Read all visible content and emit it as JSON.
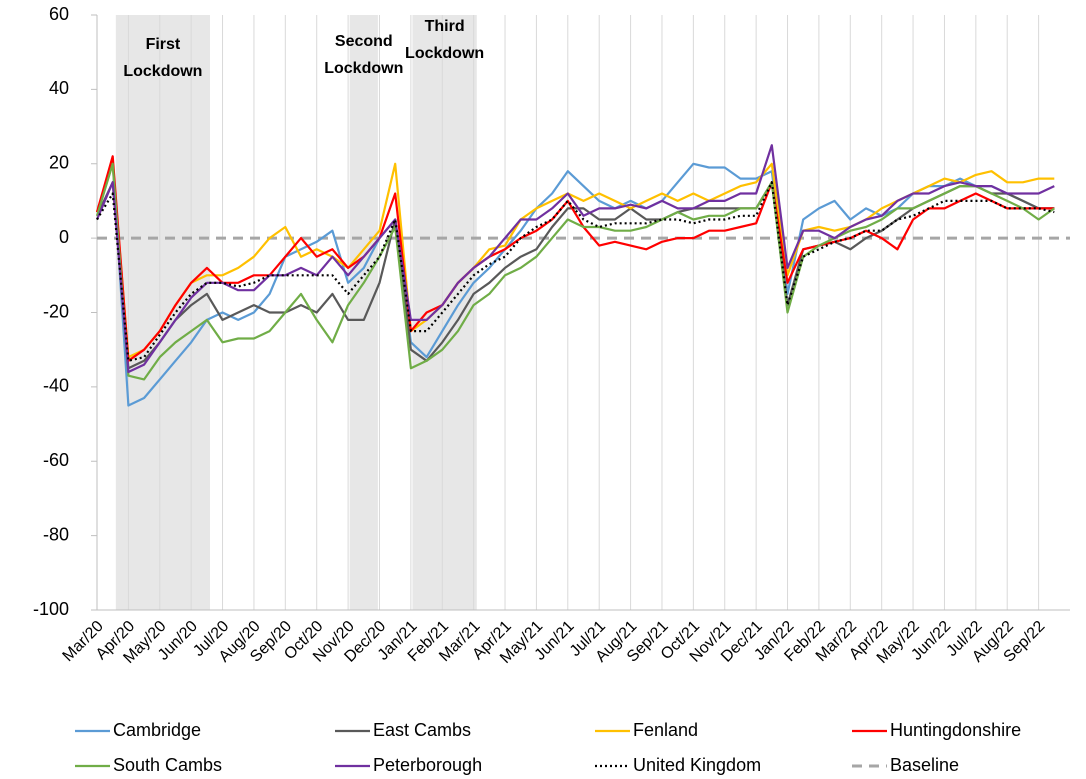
{
  "chart_data": {
    "type": "line",
    "categories": [
      "Mar/20",
      null,
      "Apr/20",
      null,
      "May/20",
      null,
      "Jun/20",
      null,
      "Jul/20",
      null,
      "Aug/20",
      null,
      "Sep/20",
      null,
      "Oct/20",
      null,
      "Nov/20",
      null,
      "Dec/20",
      null,
      "Jan/21",
      null,
      "Feb/21",
      null,
      "Mar/21",
      null,
      "Apr/21",
      null,
      "May/21",
      null,
      "Jun/21",
      null,
      "Jul/21",
      null,
      "Aug/21",
      null,
      "Sep/21",
      null,
      "Oct/21",
      null,
      "Nov/21",
      null,
      "Dec/21",
      null,
      "Jan/22",
      null,
      "Feb/22",
      null,
      "Mar/22",
      null,
      "Apr/22",
      null,
      "May/22",
      null,
      "Jun/22",
      null,
      "Jul/22",
      null,
      "Aug/22",
      null,
      "Sep/22",
      null
    ],
    "series": [
      {
        "name": "Cambridge",
        "color": "#5b9bd5",
        "values": [
          7,
          20,
          -45,
          -43,
          -38,
          -33,
          -28,
          -22,
          -20,
          -22,
          -20,
          -15,
          -5,
          -3,
          -1,
          2,
          -12,
          -8,
          0,
          5,
          -28,
          -32,
          -25,
          -18,
          -12,
          -8,
          -3,
          2,
          8,
          12,
          18,
          14,
          10,
          8,
          10,
          8,
          10,
          15,
          20,
          19,
          19,
          16,
          16,
          18,
          -15,
          5,
          8,
          10,
          5,
          8,
          6,
          8,
          12,
          14,
          14,
          16,
          14,
          14,
          12,
          10,
          8,
          8
        ]
      },
      {
        "name": "East Cambs",
        "color": "#595959",
        "values": [
          6,
          15,
          -35,
          -33,
          -28,
          -22,
          -18,
          -15,
          -22,
          -20,
          -18,
          -20,
          -20,
          -18,
          -20,
          -15,
          -22,
          -22,
          -12,
          5,
          -30,
          -33,
          -28,
          -22,
          -15,
          -12,
          -8,
          -5,
          -3,
          3,
          8,
          8,
          5,
          5,
          8,
          5,
          5,
          7,
          8,
          8,
          8,
          8,
          8,
          15,
          -18,
          -3,
          -2,
          -1,
          -3,
          0,
          2,
          5,
          8,
          10,
          12,
          14,
          14,
          12,
          12,
          10,
          8,
          8
        ]
      },
      {
        "name": "Fenland",
        "color": "#ffc000",
        "values": [
          7,
          20,
          -32,
          -30,
          -25,
          -18,
          -12,
          -10,
          -10,
          -8,
          -5,
          0,
          3,
          -5,
          -3,
          -5,
          -8,
          -3,
          2,
          20,
          -25,
          -22,
          -18,
          -12,
          -8,
          -3,
          -2,
          5,
          8,
          10,
          12,
          10,
          12,
          10,
          8,
          10,
          12,
          10,
          12,
          10,
          12,
          14,
          15,
          20,
          -10,
          2,
          3,
          2,
          3,
          5,
          8,
          10,
          12,
          14,
          16,
          15,
          17,
          18,
          15,
          15,
          16,
          16
        ]
      },
      {
        "name": "Huntingdonshire",
        "color": "#ff0000",
        "values": [
          7,
          22,
          -33,
          -30,
          -25,
          -18,
          -12,
          -8,
          -12,
          -12,
          -10,
          -10,
          -5,
          0,
          -5,
          -3,
          -8,
          -5,
          0,
          12,
          -25,
          -20,
          -18,
          -12,
          -8,
          -5,
          -3,
          0,
          2,
          5,
          10,
          3,
          -2,
          -1,
          -2,
          -3,
          -1,
          0,
          0,
          2,
          2,
          3,
          4,
          15,
          -12,
          -3,
          -2,
          -1,
          0,
          2,
          0,
          -3,
          5,
          8,
          8,
          10,
          12,
          10,
          8,
          8,
          8,
          8
        ]
      },
      {
        "name": "South Cambs",
        "color": "#70ad47",
        "values": [
          6,
          20,
          -37,
          -38,
          -32,
          -28,
          -25,
          -22,
          -28,
          -27,
          -27,
          -25,
          -20,
          -15,
          -22,
          -28,
          -18,
          -12,
          -5,
          3,
          -35,
          -33,
          -30,
          -25,
          -18,
          -15,
          -10,
          -8,
          -5,
          0,
          5,
          3,
          3,
          2,
          2,
          3,
          5,
          7,
          5,
          6,
          6,
          8,
          8,
          15,
          -20,
          -5,
          -2,
          0,
          2,
          3,
          5,
          8,
          8,
          10,
          12,
          14,
          14,
          12,
          10,
          8,
          5,
          8
        ]
      },
      {
        "name": "Peterborough",
        "color": "#7030a0",
        "values": [
          5,
          15,
          -36,
          -34,
          -28,
          -22,
          -16,
          -12,
          -12,
          -14,
          -14,
          -10,
          -10,
          -8,
          -10,
          -5,
          -10,
          -5,
          0,
          5,
          -22,
          -22,
          -18,
          -12,
          -8,
          -5,
          0,
          5,
          5,
          8,
          12,
          6,
          8,
          8,
          9,
          8,
          10,
          8,
          8,
          10,
          10,
          12,
          12,
          25,
          -8,
          2,
          2,
          0,
          3,
          5,
          6,
          10,
          12,
          12,
          14,
          15,
          14,
          14,
          12,
          12,
          12,
          14
        ]
      },
      {
        "name": "United Kingdom",
        "color": "#000000",
        "line_style": "dotted",
        "values": [
          5,
          12,
          -33,
          -32,
          -26,
          -20,
          -15,
          -12,
          -12,
          -13,
          -12,
          -10,
          -10,
          -10,
          -10,
          -10,
          -15,
          -10,
          -5,
          5,
          -25,
          -25,
          -20,
          -15,
          -10,
          -7,
          -5,
          0,
          3,
          5,
          10,
          5,
          3,
          4,
          4,
          4,
          5,
          5,
          4,
          5,
          5,
          6,
          6,
          15,
          -18,
          -5,
          -3,
          -1,
          0,
          2,
          2,
          5,
          6,
          8,
          10,
          10,
          10,
          10,
          8,
          8,
          8,
          7
        ]
      }
    ],
    "baseline": {
      "name": "Baseline",
      "value": 0,
      "color": "#a6a6a6",
      "line_style": "dashed"
    },
    "lockdowns": [
      {
        "lines": [
          "First",
          "Lockdown"
        ],
        "start": 1.2,
        "end": 7.2
      },
      {
        "lines": [
          "Second",
          "Lockdown"
        ],
        "start": 16.1,
        "end": 17.9
      },
      {
        "lines": [
          "Third",
          "Lockdown"
        ],
        "start": 20.1,
        "end": 24.2
      }
    ],
    "ylim": [
      -100,
      60
    ],
    "yticks": [
      -100,
      -80,
      -60,
      -40,
      -20,
      0,
      20,
      40,
      60
    ],
    "grid": true
  }
}
